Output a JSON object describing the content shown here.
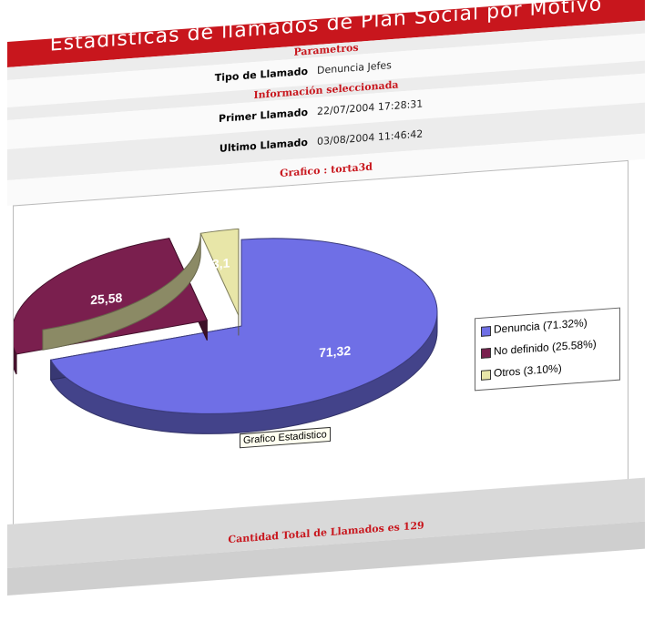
{
  "window": {
    "title": "Estadisticas de llamados de Plan Social por Motivo"
  },
  "params": {
    "section_label": "Parametros",
    "tipo_label": "Tipo de Llamado",
    "tipo_value": "Denuncia Jefes"
  },
  "info": {
    "section_label": "Información seleccionada",
    "primer_label": "Primer Llamado",
    "primer_value": "22/07/2004 17:28:31",
    "ultimo_label": "Ultimo Llamado",
    "ultimo_value": "03/08/2004 11:46:42"
  },
  "grafico": {
    "label": "Grafico : torta3d",
    "caption": "Grafico Estadistico"
  },
  "legend": {
    "items": [
      {
        "label": "Denuncia (71.32%)",
        "color": "#6f6fe6"
      },
      {
        "label": "No definido (25.58%)",
        "color": "#7a1f4e"
      },
      {
        "label": "Otros (3.10%)",
        "color": "#e8e6a8"
      }
    ]
  },
  "footer": {
    "total_text": "Cantidad Total de Llamados es 129"
  },
  "chart_data": {
    "type": "pie",
    "categories": [
      "Denuncia",
      "No definido",
      "Otros"
    ],
    "values": [
      71.32,
      25.58,
      3.1
    ],
    "data_labels": [
      "71,32",
      "25,58",
      "3,1"
    ],
    "colors": [
      "#6f6fe6",
      "#7a1f4e",
      "#e8e6a8"
    ],
    "legend_position": "right",
    "three_d": true
  }
}
